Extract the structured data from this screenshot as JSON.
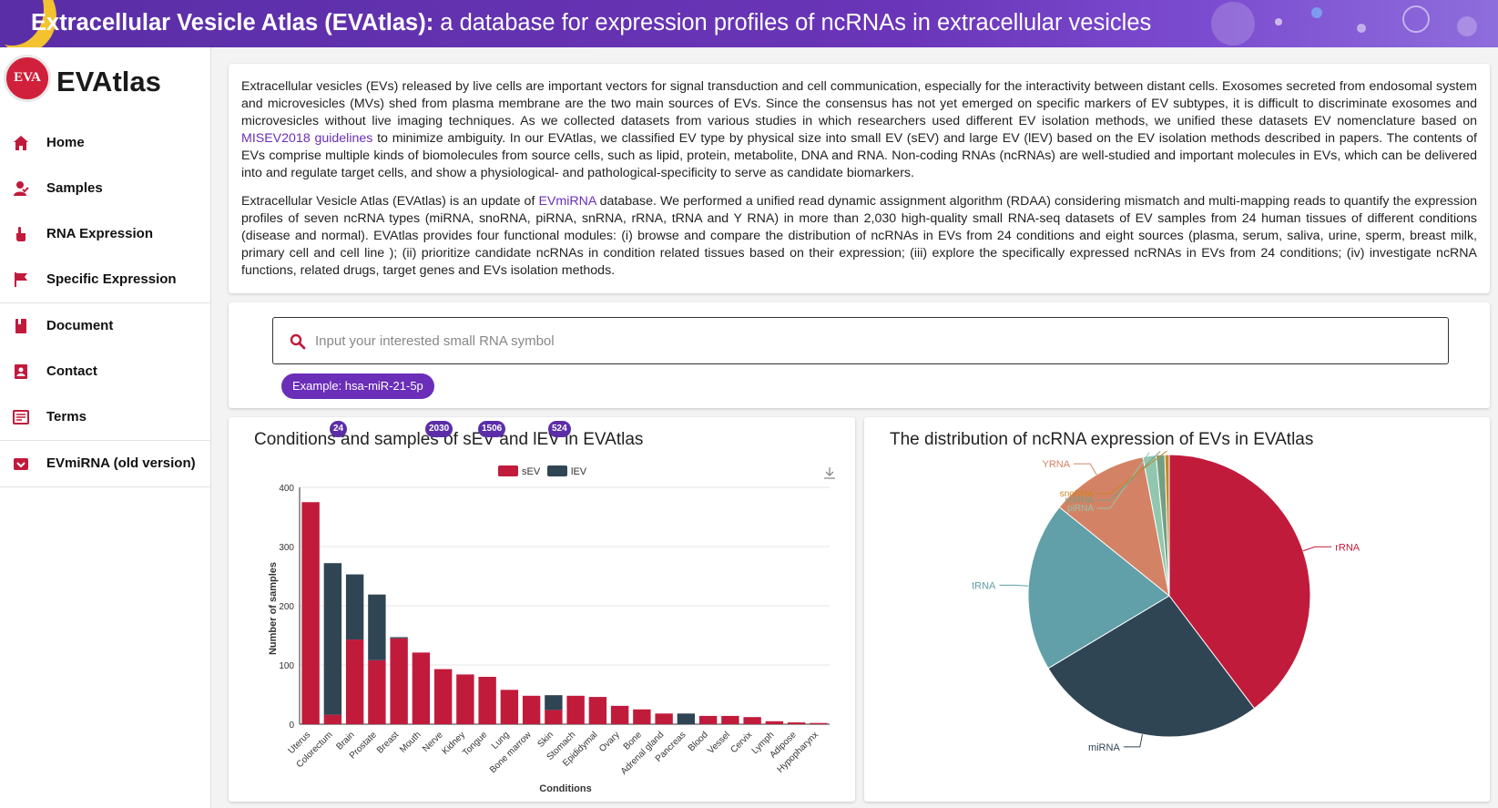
{
  "banner": {
    "title_bold": "Extracellular Vesicle Atlas (EVAtlas):",
    "title_rest": " a database for expression profiles of ncRNAs in extracellular vesicles"
  },
  "brand": {
    "logo_text": "EVA",
    "name": "EVAtlas"
  },
  "nav": {
    "items": [
      {
        "label": "Home",
        "icon": "home-icon"
      },
      {
        "label": "Samples",
        "icon": "user-check-icon"
      },
      {
        "label": "RNA Expression",
        "icon": "pointer-hand-icon"
      },
      {
        "label": "Specific Expression",
        "icon": "flag-icon"
      },
      {
        "label": "Document",
        "icon": "book-icon"
      },
      {
        "label": "Contact",
        "icon": "contact-card-icon"
      },
      {
        "label": "Terms",
        "icon": "terms-icon"
      },
      {
        "label": "EVmiRNA (old version)",
        "icon": "archive-icon"
      }
    ]
  },
  "intro": {
    "p1_a": "Extracellular vesicles (EVs) released by live cells are important vectors for signal transduction and cell communication, especially for the interactivity between distant cells. Exosomes secreted from endosomal system and microvesicles (MVs) shed from plasma membrane are the two main sources of EVs. Since the consensus has not yet emerged on specific markers of EV subtypes, it is difficult to discriminate exosomes and microvesicles without live imaging techniques. As we collected datasets from various studies in which researchers used different EV isolation methods, we unified these datasets EV nomenclature based on ",
    "p1_link": "MISEV2018 guidelines",
    "p1_b": " to minimize ambiguity. In our EVAtlas, we classified EV type by physical size into small EV (sEV) and large EV (lEV) based on the EV isolation methods described in papers. The contents of EVs comprise multiple kinds of biomolecules from source cells, such as lipid, protein, metabolite, DNA and RNA. Non-coding RNAs (ncRNAs) are well-studied and important molecules in EVs, which can be delivered into and regulate target cells, and show a physiological- and pathological-specificity to serve as candidate biomarkers.",
    "p2_a": "Extracellular Vesicle Atlas (EVAtlas) is an update of ",
    "p2_link": "EVmiRNA",
    "p2_b": " database. We performed a unified read dynamic assignment algorithm (RDAA) considering mismatch and multi-mapping reads to quantify the expression profiles of seven ncRNA types (miRNA, snoRNA, piRNA, snRNA, rRNA, tRNA and Y RNA) in more than 2,030 high-quality small RNA-seq datasets of EV samples from 24 human tissues of different conditions (disease and normal). EVAtlas provides four functional modules: (i) browse and compare the distribution of ncRNAs in EVs from 24 conditions and eight sources (plasma, serum, saliva, urine, sperm, breast milk, primary cell and cell line ); (ii) prioritize candidate ncRNAs in condition related tissues based on their expression; (iii) explore the specifically expressed ncRNAs in EVs from 24 conditions; (iv) investigate ncRNA functions, related drugs, target genes and EVs isolation methods."
  },
  "search": {
    "placeholder": "Input your interested small RNA symbol",
    "value": "",
    "example_label": "Example: hsa-miR-21-5p"
  },
  "badges": [
    "24",
    "2030",
    "1506",
    "524"
  ],
  "chart_data": [
    {
      "type": "bar",
      "title": "Conditions and samples of sEV and lEV in EVAtlas",
      "xlabel": "Conditions",
      "ylabel": "Number of samples",
      "ylim": [
        0,
        400
      ],
      "yticks": [
        0,
        100,
        200,
        300,
        400
      ],
      "stacked": true,
      "legend": "top-center",
      "categories": [
        "Uterus",
        "Colorectum",
        "Brain",
        "Prostate",
        "Breast",
        "Mouth",
        "Nerve",
        "Kidney",
        "Tongue",
        "Lung",
        "Bone marrow",
        "Skin",
        "Stomach",
        "Epididymal",
        "Ovary",
        "Bone",
        "Adrenal gland",
        "Pancreas",
        "Blood",
        "Vessel",
        "Cervix",
        "Lymph",
        "Adipose",
        "Hypopharynx"
      ],
      "series": [
        {
          "name": "sEV",
          "color": "#c11b3c",
          "values": [
            375,
            16,
            143,
            108,
            145,
            121,
            93,
            84,
            80,
            58,
            48,
            24,
            48,
            46,
            31,
            25,
            18,
            0,
            14,
            14,
            12,
            5,
            3,
            2
          ]
        },
        {
          "name": "lEV",
          "color": "#2f4554",
          "values": [
            0,
            256,
            110,
            111,
            2,
            0,
            0,
            0,
            0,
            0,
            0,
            25,
            0,
            0,
            0,
            0,
            0,
            18,
            0,
            0,
            0,
            0,
            0,
            0
          ]
        }
      ]
    },
    {
      "type": "pie",
      "title": "The distribution of ncRNA expression of EVs in EVAtlas",
      "labels": [
        "rRNA",
        "miRNA",
        "tRNA",
        "YRNA",
        "piRNA",
        "snRNA",
        "snoRNA"
      ],
      "values": [
        39.7,
        26.7,
        19.4,
        11.2,
        1.5,
        1.0,
        0.5
      ],
      "colors": [
        "#c11b3c",
        "#2f4554",
        "#61a0a8",
        "#d48265",
        "#91c7ae",
        "#749f83",
        "#ca8622"
      ]
    }
  ]
}
